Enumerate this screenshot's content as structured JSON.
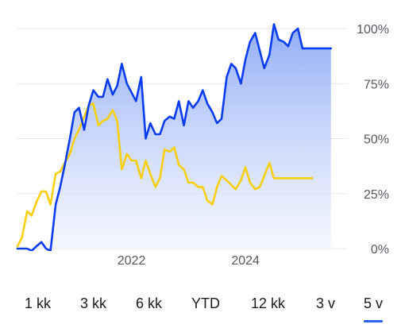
{
  "colors": {
    "blue_series": "#0a3cf2",
    "blue_fill_top": "#8aa8f5",
    "blue_fill_bottom": "#eef2fd",
    "yellow_series": "#f7cf0c",
    "grid": "#e6e8eb",
    "tab_underline": "#2a64e8"
  },
  "chart_data": {
    "type": "line",
    "ylim": [
      0,
      100
    ],
    "yticks": [
      "0%",
      "25%",
      "50%",
      "75%",
      "100%"
    ],
    "ytick_values": [
      0,
      25,
      50,
      75,
      100
    ],
    "xlim": [
      2020.0,
      2025.6
    ],
    "xticks": [
      "2022",
      "2024"
    ],
    "xtick_values": [
      2022.0,
      2024.0
    ],
    "grid": true,
    "series": [
      {
        "color_key": "blue_series",
        "filled": true,
        "x": [
          2020.0,
          2020.08,
          2020.17,
          2020.25,
          2020.33,
          2020.42,
          2020.5,
          2020.58,
          2020.67,
          2020.75,
          2020.83,
          2020.92,
          2021.0,
          2021.08,
          2021.17,
          2021.25,
          2021.33,
          2021.42,
          2021.5,
          2021.58,
          2021.67,
          2021.75,
          2021.83,
          2021.92,
          2022.0,
          2022.08,
          2022.17,
          2022.25,
          2022.33,
          2022.42,
          2022.5,
          2022.58,
          2022.67,
          2022.75,
          2022.83,
          2022.92,
          2023.0,
          2023.08,
          2023.17,
          2023.25,
          2023.33,
          2023.42,
          2023.5,
          2023.58,
          2023.67,
          2023.75,
          2023.83,
          2023.92,
          2024.0,
          2024.08,
          2024.17,
          2024.25,
          2024.33,
          2024.42,
          2024.5,
          2024.58,
          2024.67,
          2024.75,
          2024.83,
          2024.92,
          2025.0,
          2025.08,
          2025.17,
          2025.25,
          2025.33,
          2025.42,
          2025.5
        ],
        "y": [
          0,
          0,
          0,
          -1,
          1,
          3,
          0,
          -1,
          20,
          28,
          38,
          50,
          62,
          64,
          54,
          65,
          72,
          69,
          69,
          77,
          70,
          74,
          84,
          75,
          71,
          67,
          78,
          50,
          57,
          52,
          52,
          58,
          60,
          59,
          67,
          56,
          67,
          64,
          67,
          72,
          66,
          62,
          57,
          59,
          78,
          84,
          82,
          75,
          86,
          94,
          98,
          90,
          82,
          88,
          102,
          95,
          94,
          92,
          98,
          100,
          91,
          91,
          91,
          91,
          91,
          91,
          91
        ]
      },
      {
        "color_key": "yellow_series",
        "filled": false,
        "x": [
          2020.0,
          2020.08,
          2020.17,
          2020.25,
          2020.33,
          2020.42,
          2020.5,
          2020.58,
          2020.67,
          2020.75,
          2020.83,
          2020.92,
          2021.0,
          2021.08,
          2021.17,
          2021.25,
          2021.33,
          2021.42,
          2021.5,
          2021.58,
          2021.67,
          2021.75,
          2021.83,
          2021.92,
          2022.0,
          2022.08,
          2022.17,
          2022.25,
          2022.33,
          2022.42,
          2022.5,
          2022.58,
          2022.67,
          2022.75,
          2022.83,
          2022.92,
          2023.0,
          2023.08,
          2023.17,
          2023.25,
          2023.33,
          2023.42,
          2023.5,
          2023.58,
          2023.67,
          2023.75,
          2023.83,
          2023.92,
          2024.0,
          2024.08,
          2024.17,
          2024.25,
          2024.33,
          2024.42,
          2024.5,
          2024.58,
          2024.67,
          2024.75,
          2024.83,
          2024.92,
          2025.0,
          2025.08,
          2025.17
        ],
        "y": [
          1,
          5,
          17,
          15,
          21,
          26,
          26,
          20,
          34,
          35,
          39,
          43,
          50,
          54,
          60,
          65,
          66,
          56,
          58,
          59,
          63,
          58,
          36,
          43,
          40,
          40,
          32,
          40,
          34,
          28,
          32,
          45,
          44,
          46,
          38,
          36,
          30,
          30,
          28,
          28,
          22,
          20,
          28,
          33,
          31,
          29,
          27,
          31,
          37,
          30,
          27,
          28,
          33,
          39,
          32,
          32,
          32,
          32,
          32,
          32,
          32,
          32,
          32
        ]
      }
    ]
  },
  "ranges": {
    "active_index": 6,
    "items": [
      {
        "label": "1 kk"
      },
      {
        "label": "3 kk"
      },
      {
        "label": "6 kk"
      },
      {
        "label": "YTD"
      },
      {
        "label": "12 kk"
      },
      {
        "label": "3 v"
      },
      {
        "label": "5 v"
      }
    ]
  }
}
